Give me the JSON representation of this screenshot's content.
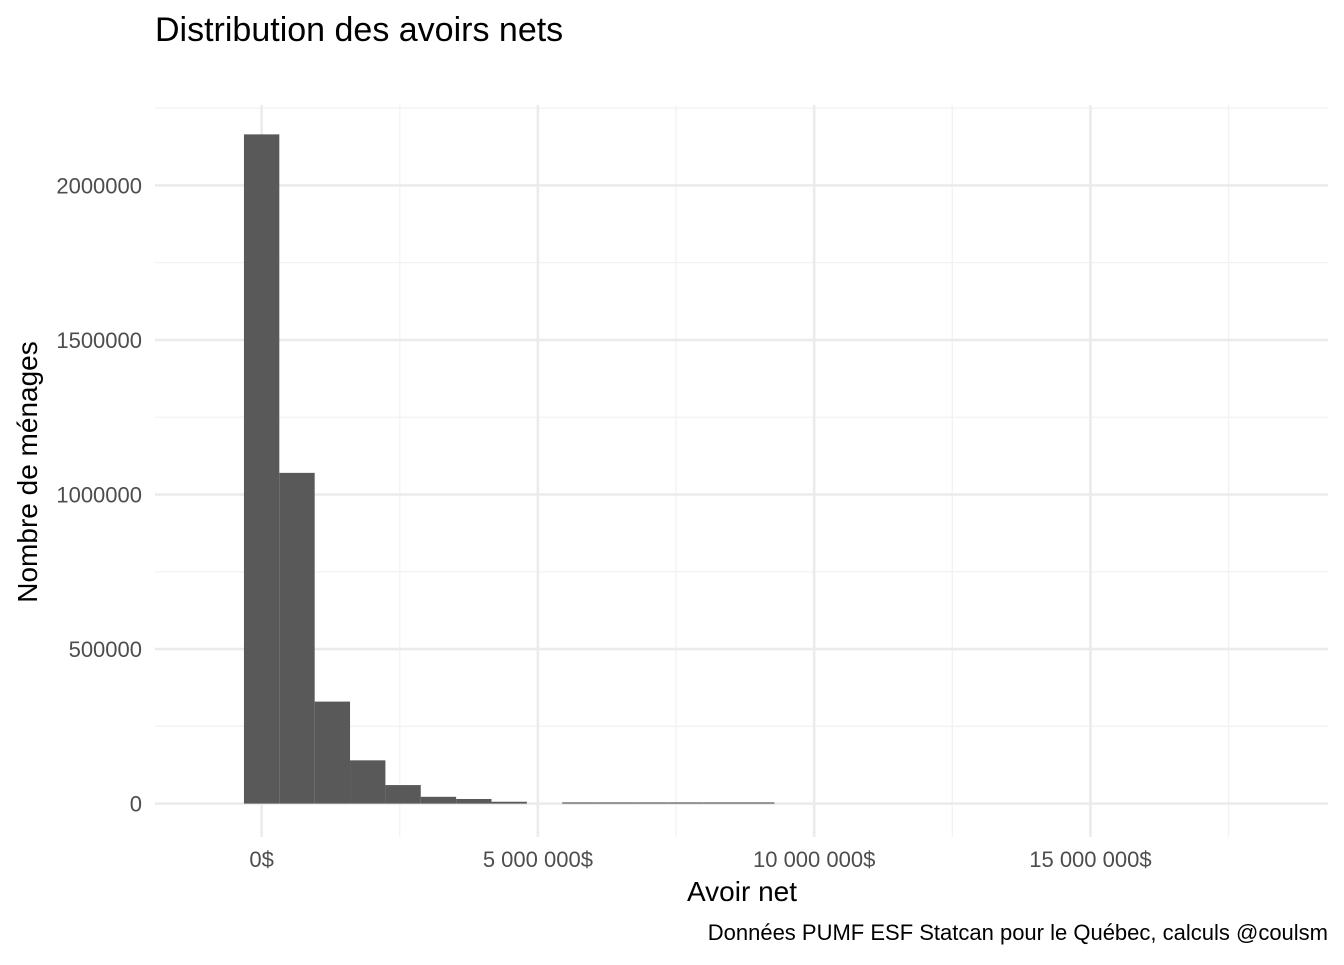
{
  "chart_data": {
    "type": "bar",
    "title": "Distribution des avoirs nets",
    "xlabel": "Avoir net",
    "ylabel": "Nombre de ménages",
    "caption": "Données PUMF ESF Statcan pour le Québec, calculs @coulsm",
    "bar_color": "#595959",
    "background": "#ffffff",
    "grid": true,
    "legend": "none",
    "bin_width": 640000,
    "xlim": [
      -1930000,
      19300000
    ],
    "ylim": [
      -108000,
      2260000
    ],
    "x_ticks": [
      0,
      5000000,
      10000000,
      15000000
    ],
    "x_tick_labels": [
      "0$",
      "5 000 000$",
      "10 000 000$",
      "15 000 000$"
    ],
    "y_ticks": [
      0,
      500000,
      1000000,
      1500000,
      2000000
    ],
    "y_tick_labels": [
      "0",
      "500000",
      "1000000",
      "1500000",
      "2000000"
    ],
    "bins": [
      {
        "x": 0,
        "count": 2165000
      },
      {
        "x": 640000,
        "count": 1070000
      },
      {
        "x": 1280000,
        "count": 330000
      },
      {
        "x": 1920000,
        "count": 140000
      },
      {
        "x": 2560000,
        "count": 60000
      },
      {
        "x": 3200000,
        "count": 22000
      },
      {
        "x": 3840000,
        "count": 15000
      },
      {
        "x": 4480000,
        "count": 6000
      },
      {
        "x": 5120000,
        "count": 0
      },
      {
        "x": 5760000,
        "count": 2000
      },
      {
        "x": 6400000,
        "count": 2000
      },
      {
        "x": 7040000,
        "count": 2000
      },
      {
        "x": 7680000,
        "count": 2000
      },
      {
        "x": 8320000,
        "count": 2000
      },
      {
        "x": 8960000,
        "count": 2000
      }
    ]
  }
}
